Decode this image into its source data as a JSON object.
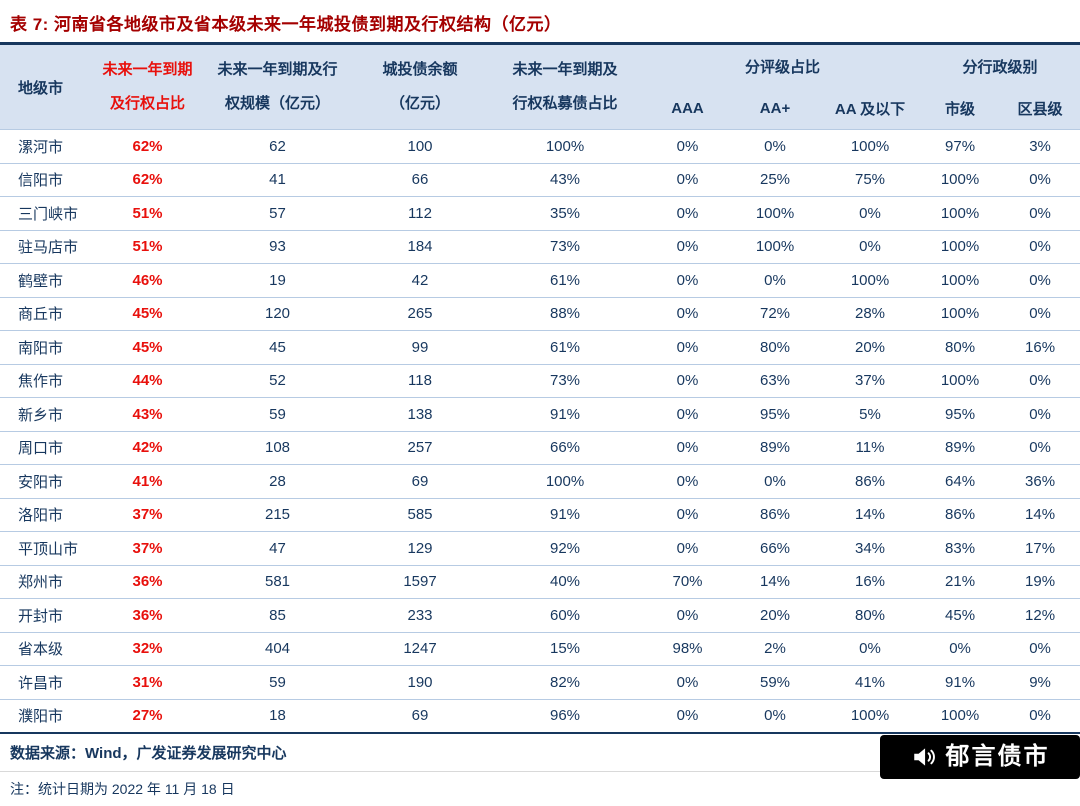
{
  "title": "表 7:  河南省各地级市及省本级未来一年城投债到期及行权结构（亿元）",
  "colors": {
    "title_red": "#a40000",
    "accent_red": "#e8100c",
    "navy": "#17375e",
    "header_bg": "#d7e2f1",
    "divider": "#b7cbe3"
  },
  "table": {
    "headers": {
      "city": "地级市",
      "due_pct": [
        "未来一年到期",
        "及行权占比"
      ],
      "due_scale": [
        "未来一年到期及行",
        "权规模（亿元）"
      ],
      "balance": [
        "城投债余额",
        "（亿元）"
      ],
      "private_pct": [
        "未来一年到期及",
        "行权私募债占比"
      ],
      "rating_group": "分评级占比",
      "admin_group": "分行政级别",
      "aaa": "AAA",
      "aa_plus": "AA+",
      "aa_below": "AA 及以下",
      "city_level": "市级",
      "county_level": "区县级"
    },
    "column_keys": [
      "city",
      "due_pct",
      "due_scale",
      "balance",
      "private_pct",
      "aaa",
      "aa_plus",
      "aa_below",
      "city_level",
      "county_level"
    ],
    "rows": [
      {
        "city": "漯河市",
        "due_pct": "62%",
        "due_scale": "62",
        "balance": "100",
        "private_pct": "100%",
        "aaa": "0%",
        "aa_plus": "0%",
        "aa_below": "100%",
        "city_level": "97%",
        "county_level": "3%"
      },
      {
        "city": "信阳市",
        "due_pct": "62%",
        "due_scale": "41",
        "balance": "66",
        "private_pct": "43%",
        "aaa": "0%",
        "aa_plus": "25%",
        "aa_below": "75%",
        "city_level": "100%",
        "county_level": "0%"
      },
      {
        "city": "三门峡市",
        "due_pct": "51%",
        "due_scale": "57",
        "balance": "112",
        "private_pct": "35%",
        "aaa": "0%",
        "aa_plus": "100%",
        "aa_below": "0%",
        "city_level": "100%",
        "county_level": "0%"
      },
      {
        "city": "驻马店市",
        "due_pct": "51%",
        "due_scale": "93",
        "balance": "184",
        "private_pct": "73%",
        "aaa": "0%",
        "aa_plus": "100%",
        "aa_below": "0%",
        "city_level": "100%",
        "county_level": "0%"
      },
      {
        "city": "鹤壁市",
        "due_pct": "46%",
        "due_scale": "19",
        "balance": "42",
        "private_pct": "61%",
        "aaa": "0%",
        "aa_plus": "0%",
        "aa_below": "100%",
        "city_level": "100%",
        "county_level": "0%"
      },
      {
        "city": "商丘市",
        "due_pct": "45%",
        "due_scale": "120",
        "balance": "265",
        "private_pct": "88%",
        "aaa": "0%",
        "aa_plus": "72%",
        "aa_below": "28%",
        "city_level": "100%",
        "county_level": "0%"
      },
      {
        "city": "南阳市",
        "due_pct": "45%",
        "due_scale": "45",
        "balance": "99",
        "private_pct": "61%",
        "aaa": "0%",
        "aa_plus": "80%",
        "aa_below": "20%",
        "city_level": "80%",
        "county_level": "16%"
      },
      {
        "city": "焦作市",
        "due_pct": "44%",
        "due_scale": "52",
        "balance": "118",
        "private_pct": "73%",
        "aaa": "0%",
        "aa_plus": "63%",
        "aa_below": "37%",
        "city_level": "100%",
        "county_level": "0%"
      },
      {
        "city": "新乡市",
        "due_pct": "43%",
        "due_scale": "59",
        "balance": "138",
        "private_pct": "91%",
        "aaa": "0%",
        "aa_plus": "95%",
        "aa_below": "5%",
        "city_level": "95%",
        "county_level": "0%"
      },
      {
        "city": "周口市",
        "due_pct": "42%",
        "due_scale": "108",
        "balance": "257",
        "private_pct": "66%",
        "aaa": "0%",
        "aa_plus": "89%",
        "aa_below": "11%",
        "city_level": "89%",
        "county_level": "0%"
      },
      {
        "city": "安阳市",
        "due_pct": "41%",
        "due_scale": "28",
        "balance": "69",
        "private_pct": "100%",
        "aaa": "0%",
        "aa_plus": "0%",
        "aa_below": "86%",
        "city_level": "64%",
        "county_level": "36%"
      },
      {
        "city": "洛阳市",
        "due_pct": "37%",
        "due_scale": "215",
        "balance": "585",
        "private_pct": "91%",
        "aaa": "0%",
        "aa_plus": "86%",
        "aa_below": "14%",
        "city_level": "86%",
        "county_level": "14%"
      },
      {
        "city": "平顶山市",
        "due_pct": "37%",
        "due_scale": "47",
        "balance": "129",
        "private_pct": "92%",
        "aaa": "0%",
        "aa_plus": "66%",
        "aa_below": "34%",
        "city_level": "83%",
        "county_level": "17%"
      },
      {
        "city": "郑州市",
        "due_pct": "36%",
        "due_scale": "581",
        "balance": "1597",
        "private_pct": "40%",
        "aaa": "70%",
        "aa_plus": "14%",
        "aa_below": "16%",
        "city_level": "21%",
        "county_level": "19%"
      },
      {
        "city": "开封市",
        "due_pct": "36%",
        "due_scale": "85",
        "balance": "233",
        "private_pct": "60%",
        "aaa": "0%",
        "aa_plus": "20%",
        "aa_below": "80%",
        "city_level": "45%",
        "county_level": "12%"
      },
      {
        "city": "省本级",
        "due_pct": "32%",
        "due_scale": "404",
        "balance": "1247",
        "private_pct": "15%",
        "aaa": "98%",
        "aa_plus": "2%",
        "aa_below": "0%",
        "city_level": "0%",
        "county_level": "0%"
      },
      {
        "city": "许昌市",
        "due_pct": "31%",
        "due_scale": "59",
        "balance": "190",
        "private_pct": "82%",
        "aaa": "0%",
        "aa_plus": "59%",
        "aa_below": "41%",
        "city_level": "91%",
        "county_level": "9%"
      },
      {
        "city": "濮阳市",
        "due_pct": "27%",
        "due_scale": "18",
        "balance": "69",
        "private_pct": "96%",
        "aaa": "0%",
        "aa_plus": "0%",
        "aa_below": "100%",
        "city_level": "100%",
        "county_level": "0%"
      }
    ]
  },
  "footer": {
    "source": "数据来源：Wind，广发证券发展研究中心",
    "note": "注：统计日期为 2022 年 11 月 18 日",
    "logo_text": "郁言债市"
  }
}
